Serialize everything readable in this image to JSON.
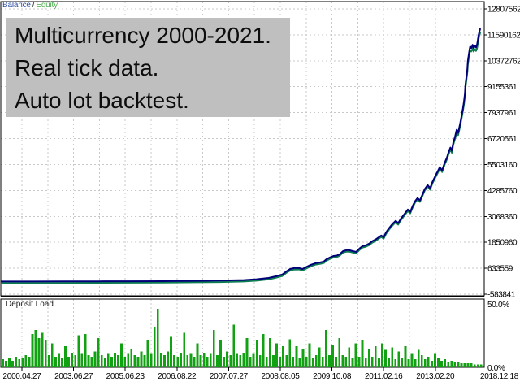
{
  "legend": {
    "balance_label": "Balance",
    "separator": "/",
    "equity_label": "Equity"
  },
  "annotation": {
    "lines": [
      "Multicurrency 2000-2021.",
      "Real tick data.",
      "Auto lot backtest."
    ]
  },
  "bottom_panel": {
    "title": "Deposit Load",
    "max_label": "50.0%",
    "min_label": "0.0%"
  },
  "colors": {
    "background": "#ffffff",
    "grid": "#c9c9c9",
    "frame": "#000000",
    "axis_text": "#000000",
    "balance_line": "#000078",
    "equity_line": "#0e7d52",
    "deposit_bars": "#12a112",
    "balance_label": "#2e4fa3",
    "equity_label": "#4bae4f",
    "annotation_bg": "#bfbfbf",
    "annotation_text": "#0d0d0d"
  },
  "chart_data": [
    {
      "type": "line",
      "panel": "main",
      "title": "Balance / Equity",
      "grid": true,
      "legend_position": "top-left",
      "y_ticks": [
        12807562,
        11590162,
        10372762,
        9155361,
        7937961,
        6720561,
        5503160,
        4285760,
        3068360,
        1850960,
        633559,
        -583841
      ],
      "x_tick_dates": [
        "2000.04.27",
        "2003.06.27",
        "2005.06.23",
        "2006.08.22",
        "2007.07.27",
        "2008.08.05",
        "2009.10.08",
        "2011.02.16",
        "2013.02.20",
        "2018.12.18"
      ],
      "series": [
        {
          "name": "Balance",
          "color_key": "balance_line",
          "points": [
            [
              0,
              10000
            ],
            [
              0.067,
              12000
            ],
            [
              0.134,
              15000
            ],
            [
              0.201,
              18000
            ],
            [
              0.268,
              22000
            ],
            [
              0.336,
              28000
            ],
            [
              0.403,
              40000
            ],
            [
              0.453,
              55000
            ],
            [
              0.503,
              80000
            ],
            [
              0.529,
              120000
            ],
            [
              0.554,
              180000
            ],
            [
              0.57,
              258000
            ],
            [
              0.582,
              334000
            ],
            [
              0.591,
              487000
            ],
            [
              0.599,
              602000
            ],
            [
              0.607,
              640000
            ],
            [
              0.617,
              645000
            ],
            [
              0.624,
              600000
            ],
            [
              0.631,
              679000
            ],
            [
              0.641,
              793000
            ],
            [
              0.651,
              870000
            ],
            [
              0.661,
              908000
            ],
            [
              0.668,
              946000
            ],
            [
              0.674,
              1060000
            ],
            [
              0.681,
              1140000
            ],
            [
              0.688,
              1210000
            ],
            [
              0.695,
              1230000
            ],
            [
              0.701,
              1290000
            ],
            [
              0.708,
              1440000
            ],
            [
              0.715,
              1480000
            ],
            [
              0.721,
              1480000
            ],
            [
              0.728,
              1440000
            ],
            [
              0.735,
              1400000
            ],
            [
              0.742,
              1560000
            ],
            [
              0.748,
              1670000
            ],
            [
              0.755,
              1710000
            ],
            [
              0.762,
              1790000
            ],
            [
              0.768,
              1900000
            ],
            [
              0.775,
              1980000
            ],
            [
              0.782,
              2090000
            ],
            [
              0.787,
              2170000
            ],
            [
              0.792,
              2090000
            ],
            [
              0.797,
              2320000
            ],
            [
              0.802,
              2480000
            ],
            [
              0.807,
              2630000
            ],
            [
              0.812,
              2750000
            ],
            [
              0.817,
              2860000
            ],
            [
              0.822,
              2750000
            ],
            [
              0.827,
              2940000
            ],
            [
              0.832,
              3090000
            ],
            [
              0.837,
              3240000
            ],
            [
              0.842,
              3390000
            ],
            [
              0.847,
              3280000
            ],
            [
              0.852,
              3550000
            ],
            [
              0.857,
              3780000
            ],
            [
              0.862,
              3930000
            ],
            [
              0.867,
              3820000
            ],
            [
              0.872,
              4080000
            ],
            [
              0.877,
              4350000
            ],
            [
              0.883,
              4540000
            ],
            [
              0.888,
              4390000
            ],
            [
              0.893,
              4690000
            ],
            [
              0.898,
              4920000
            ],
            [
              0.903,
              5150000
            ],
            [
              0.908,
              5380000
            ],
            [
              0.913,
              5230000
            ],
            [
              0.918,
              5570000
            ],
            [
              0.923,
              5840000
            ],
            [
              0.926,
              6070000
            ],
            [
              0.93,
              6300000
            ],
            [
              0.933,
              6150000
            ],
            [
              0.936,
              6530000
            ],
            [
              0.94,
              6840000
            ],
            [
              0.943,
              7140000
            ],
            [
              0.946,
              6990000
            ],
            [
              0.95,
              7410000
            ],
            [
              0.953,
              7760000
            ],
            [
              0.956,
              8140000
            ],
            [
              0.958,
              8440000
            ],
            [
              0.96,
              8820000
            ],
            [
              0.961,
              9210000
            ],
            [
              0.963,
              9590000
            ],
            [
              0.965,
              9970000
            ],
            [
              0.966,
              10350000
            ],
            [
              0.968,
              10660000
            ],
            [
              0.97,
              10930000
            ],
            [
              0.971,
              11040000
            ],
            [
              0.973,
              10970000
            ],
            [
              0.975,
              11040000
            ],
            [
              0.976,
              11120000
            ],
            [
              0.978,
              10970000
            ],
            [
              0.98,
              11040000
            ],
            [
              0.981,
              11080000
            ],
            [
              0.983,
              11000000
            ],
            [
              0.985,
              11120000
            ],
            [
              0.986,
              11240000
            ],
            [
              0.988,
              11540000
            ],
            [
              0.99,
              11740000
            ],
            [
              0.992,
              11890000
            ]
          ]
        },
        {
          "name": "Equity",
          "color_key": "equity_line",
          "tracks": "Balance",
          "ratio_to_balance": 0.985
        }
      ]
    },
    {
      "type": "bar",
      "panel": "bottom",
      "title": "Deposit Load",
      "ylabel_max": "50.0%",
      "ylabel_min": "0.0%",
      "ylim_pct": [
        0,
        50
      ],
      "color_key": "deposit_bars",
      "values": [
        6,
        5,
        7,
        5,
        8,
        6,
        7,
        9,
        8,
        25,
        28,
        22,
        26,
        20,
        9,
        18,
        8,
        10,
        7,
        16,
        8,
        11,
        9,
        24,
        10,
        25,
        9,
        8,
        12,
        22,
        9,
        7,
        10,
        8,
        11,
        9,
        18,
        8,
        10,
        14,
        9,
        8,
        12,
        9,
        20,
        10,
        30,
        44,
        11,
        9,
        12,
        23,
        9,
        8,
        11,
        26,
        9,
        10,
        8,
        18,
        9,
        11,
        8,
        10,
        28,
        9,
        20,
        8,
        12,
        9,
        32,
        10,
        9,
        11,
        22,
        8,
        10,
        20,
        9,
        25,
        8,
        22,
        9,
        18,
        8,
        16,
        9,
        21,
        8,
        16,
        7,
        14,
        8,
        18,
        7,
        9,
        15,
        8,
        28,
        9,
        17,
        8,
        22,
        9,
        8,
        15,
        7,
        18,
        8,
        20,
        7,
        14,
        8,
        16,
        7,
        18,
        13,
        7,
        15,
        6,
        12,
        7,
        16,
        6,
        10,
        6,
        13,
        9,
        6,
        8,
        5,
        10,
        7,
        5,
        6,
        4,
        5,
        4,
        4,
        3,
        3,
        3,
        3,
        2,
        2,
        2
      ]
    }
  ]
}
